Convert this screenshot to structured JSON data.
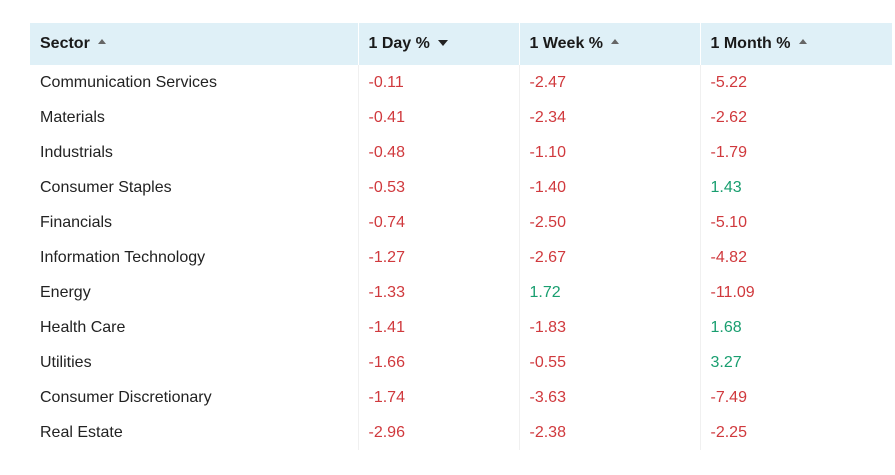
{
  "colors": {
    "header_bg": "#dff0f7",
    "negative": "#d0393d",
    "positive": "#189e6f"
  },
  "table": {
    "headers": [
      {
        "label": "Sector",
        "sort": "asc",
        "sort_icon": "sort-ascending-icon"
      },
      {
        "label": "1 Day %",
        "sort": "desc",
        "sort_icon": "sort-descending-icon"
      },
      {
        "label": "1 Week %",
        "sort": "asc",
        "sort_icon": "sort-ascending-icon"
      },
      {
        "label": "1 Month %",
        "sort": "asc",
        "sort_icon": "sort-ascending-icon"
      }
    ],
    "rows": [
      {
        "sector": "Communication Services",
        "day": "-0.11",
        "week": "-2.47",
        "month": "-5.22"
      },
      {
        "sector": "Materials",
        "day": "-0.41",
        "week": "-2.34",
        "month": "-2.62"
      },
      {
        "sector": "Industrials",
        "day": "-0.48",
        "week": "-1.10",
        "month": "-1.79"
      },
      {
        "sector": "Consumer Staples",
        "day": "-0.53",
        "week": "-1.40",
        "month": "1.43"
      },
      {
        "sector": "Financials",
        "day": "-0.74",
        "week": "-2.50",
        "month": "-5.10"
      },
      {
        "sector": "Information Technology",
        "day": "-1.27",
        "week": "-2.67",
        "month": "-4.82"
      },
      {
        "sector": "Energy",
        "day": "-1.33",
        "week": "1.72",
        "month": "-11.09"
      },
      {
        "sector": "Health Care",
        "day": "-1.41",
        "week": "-1.83",
        "month": "1.68"
      },
      {
        "sector": "Utilities",
        "day": "-1.66",
        "week": "-0.55",
        "month": "3.27"
      },
      {
        "sector": "Consumer Discretionary",
        "day": "-1.74",
        "week": "-3.63",
        "month": "-7.49"
      },
      {
        "sector": "Real Estate",
        "day": "-2.96",
        "week": "-2.38",
        "month": "-2.25"
      }
    ]
  }
}
